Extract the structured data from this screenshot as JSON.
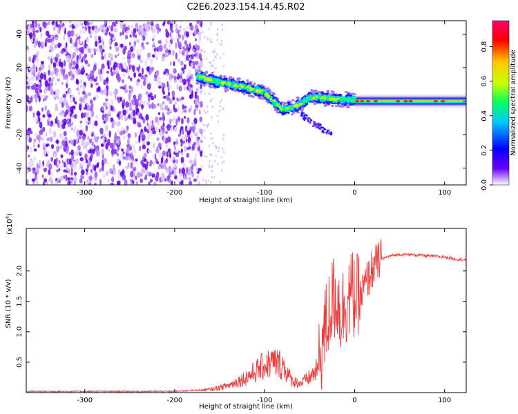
{
  "figure": {
    "title": "C2E6.2023.154.14.45.R02"
  },
  "colors": {
    "spectral_colormap": [
      "#ffffff",
      "#6a00ff",
      "#0000ff",
      "#00c8ff",
      "#00ff64",
      "#c8ff00",
      "#ffc800",
      "#ff0000",
      "#ff0066"
    ],
    "snr_line": "#f03c3c",
    "noise_purple": "#7a2cf0",
    "faint_purple": "#d4bdf8"
  },
  "chart_data": [
    {
      "type": "heatmap",
      "title": "",
      "xlabel": "Height of straight line (km)",
      "ylabel": "Frequency (Hz)",
      "xlim": [
        -365,
        124
      ],
      "ylim": [
        -50,
        48
      ],
      "xticks": [
        -300,
        -200,
        -100,
        0,
        100
      ],
      "yticks": [
        -40,
        -20,
        0,
        20,
        40
      ],
      "colorbar": {
        "label": "Normalized spectral amplitude",
        "range": [
          0.0,
          0.95
        ],
        "ticks": [
          0.0,
          0.2,
          0.4,
          0.6,
          0.8
        ]
      },
      "features": {
        "noise_region_x": [
          -365,
          -170
        ],
        "signal_track": [
          [
            -175,
            15
          ],
          [
            -150,
            11
          ],
          [
            -125,
            9
          ],
          [
            -100,
            5
          ],
          [
            -90,
            0
          ],
          [
            -80,
            -5
          ],
          [
            -65,
            -3
          ],
          [
            -50,
            2
          ],
          [
            -35,
            2
          ],
          [
            -20,
            1
          ],
          [
            0,
            1
          ],
          [
            124,
            0
          ]
        ],
        "steady_band_x": [
          0,
          124
        ],
        "steady_band_freq": 0
      }
    },
    {
      "type": "line",
      "title": "",
      "xlabel": "Height of straight line (km)",
      "ylabel": "SNR (10 * v/v)",
      "y_multiplier_label": "(x10",
      "y_multiplier_exponent": "4",
      "y_multiplier_close": ")",
      "xlim": [
        -365,
        124
      ],
      "ylim": [
        0,
        2.7
      ],
      "xticks": [
        -300,
        -200,
        -100,
        0,
        100
      ],
      "yticks": [
        0.5,
        1.0,
        1.5,
        2.0
      ],
      "ytick_labels": [
        "0.5",
        "1.0",
        "1.5",
        "2.0"
      ],
      "series": [
        {
          "x": [
            -365,
            -300,
            -250,
            -200,
            -160,
            -140,
            -120,
            -100,
            -90,
            -80,
            -70,
            -60,
            -50,
            -40,
            -35,
            -30,
            -25,
            -20,
            -15,
            -10,
            -5,
            0,
            5,
            10,
            20,
            30,
            40,
            50,
            60,
            70,
            80,
            90,
            100,
            110,
            124
          ],
          "y": [
            0.02,
            0.02,
            0.02,
            0.02,
            0.05,
            0.12,
            0.25,
            0.45,
            0.5,
            0.45,
            0.2,
            0.15,
            0.25,
            0.4,
            0.9,
            1.2,
            1.5,
            1.6,
            1.3,
            1.5,
            1.6,
            1.6,
            1.5,
            1.7,
            2.05,
            2.2,
            2.25,
            2.27,
            2.27,
            2.26,
            2.25,
            2.24,
            2.23,
            2.2,
            2.18
          ]
        }
      ]
    }
  ]
}
